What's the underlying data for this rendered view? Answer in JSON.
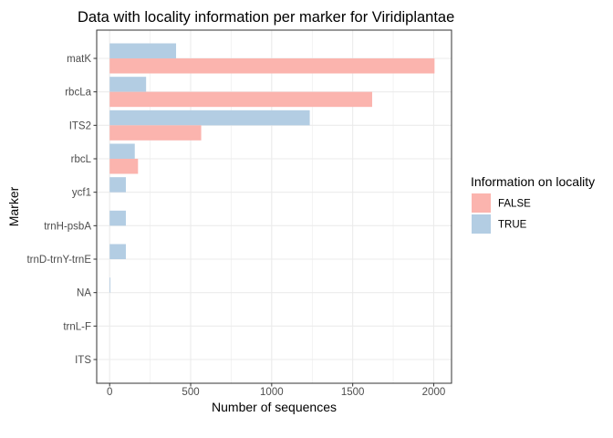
{
  "chart_data": {
    "type": "bar",
    "orientation": "horizontal",
    "title": "Data with locality information per marker for Viridiplantae",
    "xlabel": "Number of sequences",
    "ylabel": "Marker",
    "xlim": [
      -80,
      2110
    ],
    "x_ticks": [
      0,
      500,
      1000,
      1500,
      2000
    ],
    "x_tick_labels": [
      "0",
      "500",
      "1000",
      "1500",
      "2000"
    ],
    "grid": true,
    "categories": [
      "matK",
      "rbcLa",
      "ITS2",
      "rbcL",
      "ycf1",
      "trnH-psbA",
      "trnD-trnY-trnE",
      "NA",
      "trnL-F",
      "ITS"
    ],
    "legend": {
      "title": "Information on locality",
      "position": "right"
    },
    "series": [
      {
        "name": "FALSE",
        "color": "#FBB4AE",
        "values": [
          2005,
          1620,
          565,
          175,
          0,
          0,
          0,
          0,
          0,
          0
        ]
      },
      {
        "name": "TRUE",
        "color": "#B3CDE3",
        "values": [
          410,
          225,
          1235,
          155,
          100,
          100,
          100,
          5,
          0,
          0
        ]
      }
    ]
  }
}
